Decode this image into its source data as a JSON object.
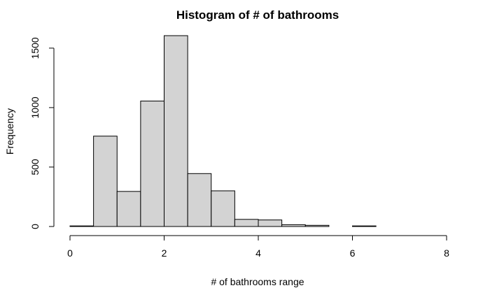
{
  "chart_data": {
    "type": "bar",
    "title": "Histogram of # of bathrooms",
    "xlabel": "# of bathrooms range",
    "ylabel": "Frequency",
    "bin_edges": [
      0,
      0.5,
      1,
      1.5,
      2,
      2.5,
      3,
      3.5,
      4,
      4.5,
      5,
      5.5,
      6,
      6.5,
      7,
      7.5,
      8
    ],
    "values": [
      5,
      760,
      295,
      1055,
      1605,
      445,
      300,
      60,
      55,
      15,
      10,
      0,
      5,
      0,
      0,
      0
    ],
    "xlim": [
      0,
      8
    ],
    "ylim": [
      0,
      1605
    ],
    "x_ticks": [
      0,
      2,
      4,
      6,
      8
    ],
    "y_ticks": [
      0,
      500,
      1000,
      1500
    ],
    "grid": false,
    "bar_fill": "#d3d3d3",
    "bar_stroke": "#000000"
  }
}
